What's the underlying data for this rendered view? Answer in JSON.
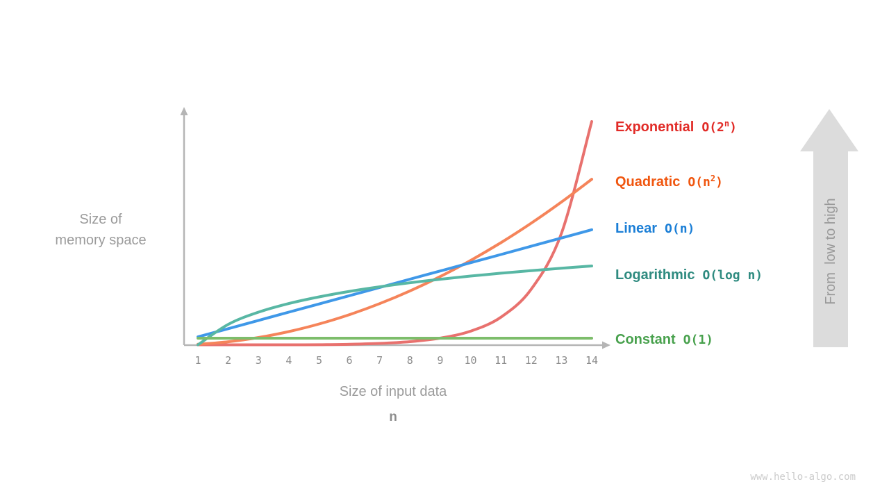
{
  "axes": {
    "y_label_line1": "Size of",
    "y_label_line2": "memory space",
    "x_label": "Size of input data",
    "x_label_var": "n",
    "x_ticks": [
      "1",
      "2",
      "3",
      "4",
      "5",
      "6",
      "7",
      "8",
      "9",
      "10",
      "11",
      "12",
      "13",
      "14"
    ]
  },
  "legend": [
    {
      "name": "Exponential",
      "prefix": "O(2",
      "sup": "n",
      "suffix": ")",
      "color": "#e12b27"
    },
    {
      "name": "Quadratic",
      "prefix": "O(n",
      "sup": "2",
      "suffix": ")",
      "color": "#f0560f"
    },
    {
      "name": "Linear",
      "prefix": "O(n)",
      "sup": "",
      "suffix": "",
      "color": "#1a7ed6"
    },
    {
      "name": "Logarithmic",
      "prefix": "O(log n)",
      "sup": "",
      "suffix": "",
      "color": "#2f8b80"
    },
    {
      "name": "Constant",
      "prefix": "O(1)",
      "sup": "",
      "suffix": "",
      "color": "#48a14d"
    }
  ],
  "annotation_arrow": {
    "label": "From  low to high",
    "fill_color": "#dcdcdc"
  },
  "watermark": "www.hello-algo.com",
  "chart_data": {
    "type": "line",
    "title": "",
    "xlabel": "Size of input data (n)",
    "ylabel": "Size of memory space",
    "x": [
      1,
      2,
      3,
      4,
      5,
      6,
      7,
      8,
      9,
      10,
      11,
      12,
      13,
      14
    ],
    "xlim": [
      1,
      14
    ],
    "ylim": [
      0,
      1.05
    ],
    "grid": false,
    "legend_position": "right",
    "y_units": "relative memory size (exponential curve at n=14 = 1.0; no numeric y scale shown)",
    "series": [
      {
        "id": "exponential",
        "name": "Exponential O(2^n)",
        "formula": "2^n / 2^14",
        "color": "#e8716e",
        "values": [
          0.0001,
          0.0002,
          0.0005,
          0.001,
          0.002,
          0.0039,
          0.0078,
          0.0156,
          0.0313,
          0.0625,
          0.125,
          0.25,
          0.5,
          1.0
        ]
      },
      {
        "id": "quadratic",
        "name": "Quadratic O(n^2)",
        "formula": "0.742*(n/14)^2",
        "color": "#f5845a",
        "values": [
          0.0038,
          0.0151,
          0.0341,
          0.0606,
          0.0947,
          0.1363,
          0.1856,
          0.2424,
          0.3067,
          0.3787,
          0.4582,
          0.5453,
          0.64,
          0.742
        ]
      },
      {
        "id": "linear",
        "name": "Linear O(n)",
        "formula": "0.516*n/14",
        "color": "#3f98e8",
        "values": [
          0.0369,
          0.0737,
          0.1106,
          0.1474,
          0.1843,
          0.2211,
          0.258,
          0.2949,
          0.3317,
          0.3686,
          0.4054,
          0.4423,
          0.4791,
          0.516
        ]
      },
      {
        "id": "logarithmic",
        "name": "Logarithmic O(log n)",
        "formula": "0.354*ln(n)/ln(14)",
        "color": "#58b7a4",
        "values": [
          0,
          0.093,
          0.1474,
          0.186,
          0.2159,
          0.2404,
          0.261,
          0.279,
          0.2947,
          0.3089,
          0.3216,
          0.3333,
          0.344,
          0.354
        ]
      },
      {
        "id": "constant",
        "name": "Constant O(1)",
        "formula": "0.031",
        "color": "#7dbd6b",
        "values": [
          0.031,
          0.031,
          0.031,
          0.031,
          0.031,
          0.031,
          0.031,
          0.031,
          0.031,
          0.031,
          0.031,
          0.031,
          0.031,
          0.031
        ]
      }
    ]
  }
}
